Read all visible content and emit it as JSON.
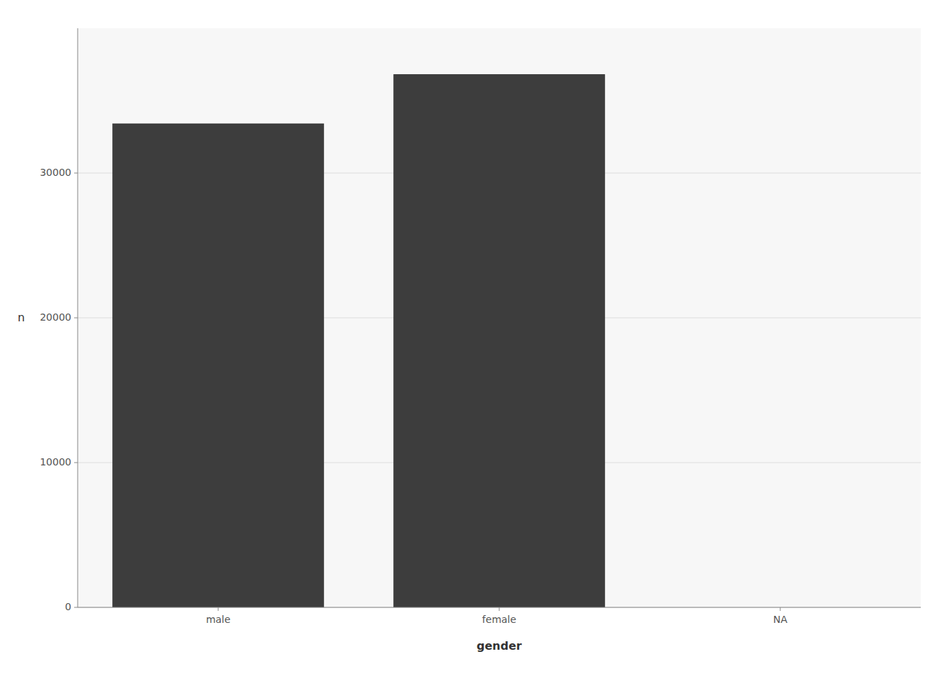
{
  "chart_data": {
    "type": "bar",
    "categories": [
      "male",
      "female",
      "NA"
    ],
    "values": [
      33400,
      36800,
      0
    ],
    "color": "#3d3d3d",
    "xlabel": "gender",
    "ylabel": "n",
    "ylim": [
      0,
      40000
    ],
    "yticks": [
      0,
      10000,
      20000,
      30000
    ],
    "grid": true
  }
}
